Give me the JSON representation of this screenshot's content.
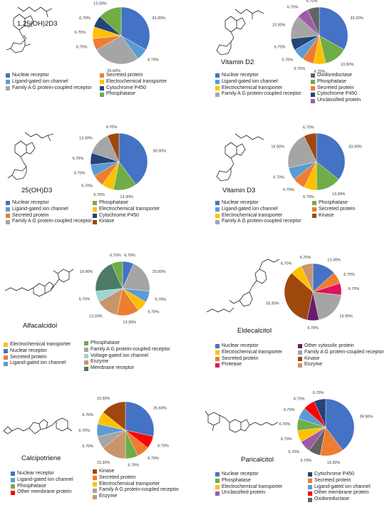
{
  "chart_data": [
    {
      "type": "pie",
      "compound": "1,25(OH)2D3",
      "slices": [
        {
          "name": "Nuclear receptor",
          "value": 33.3,
          "label": "33.30%",
          "color": "#4472c4"
        },
        {
          "name": "Ligand-gated ion channel",
          "value": 6.7,
          "label": "6.70%",
          "color": "#5b9bd5"
        },
        {
          "name": "Family A G protein-coupled receptor",
          "value": 26.6,
          "label": "26.60%",
          "color": "#a5a5a5"
        },
        {
          "name": "Secreted protein",
          "value": 6.7,
          "label": "6.70%",
          "color": "#ed7d31"
        },
        {
          "name": "Electrochemical transporter",
          "value": 6.7,
          "label": "6.70%",
          "color": "#ffc000"
        },
        {
          "name": "Cytochrome P450",
          "value": 6.7,
          "label": "6.70%",
          "color": "#264478"
        },
        {
          "name": "Phosphatase",
          "value": 13.3,
          "label": "13.30%",
          "color": "#70ad47"
        }
      ],
      "legend_col1": [
        {
          "name": "Nuclear receptor",
          "color": "#4472c4"
        },
        {
          "name": "Ligand-gated ion channel",
          "color": "#5b9bd5"
        },
        {
          "name": "Family A G protein-coupled receptor",
          "color": "#a5a5a5"
        }
      ],
      "legend_col2": [
        {
          "name": "Secreted protein",
          "color": "#ed7d31"
        },
        {
          "name": "Electrochemical transporter",
          "color": "#ffc000"
        },
        {
          "name": "Cytochrome P450",
          "color": "#264478"
        },
        {
          "name": "Phosphatase",
          "color": "#70ad47"
        }
      ]
    },
    {
      "type": "pie",
      "compound": "Vitamin D2",
      "slices": [
        {
          "name": "Nuclear receptor",
          "value": 33.2,
          "label": "33.20%",
          "color": "#4472c4"
        },
        {
          "name": "Phosphatase",
          "value": 13.3,
          "label": "13.30%",
          "color": "#70ad47"
        },
        {
          "name": "Electrochemical transporter",
          "value": 6.7,
          "label": "6.70%",
          "color": "#ffc000"
        },
        {
          "name": "Secreted protein",
          "value": 6.7,
          "label": "6.70%",
          "color": "#ed7d31"
        },
        {
          "name": "Ligand-gated ion channel",
          "value": 6.7,
          "label": "6.70%",
          "color": "#5b9bd5"
        },
        {
          "name": "Cytochrome P450",
          "value": 6.7,
          "label": "6.70%",
          "color": "#264478"
        },
        {
          "name": "Family A G protein-coupled receptor",
          "value": 13.3,
          "label": "13.30%",
          "color": "#a5a5a5"
        },
        {
          "name": "Unclassified protein",
          "value": 6.7,
          "label": "6.70%",
          "color": "#9e5ca8"
        },
        {
          "name": "Oxidoreductase",
          "value": 6.7,
          "label": "6.70%",
          "color": "#636363"
        }
      ],
      "legend_col1": [
        {
          "name": "Nuclear receptor",
          "color": "#4472c4"
        },
        {
          "name": "Ligand-gated ion channel",
          "color": "#5b9bd5"
        },
        {
          "name": "Electrochemical transporter",
          "color": "#ffc000"
        },
        {
          "name": "Family A G protein-coupled receptor",
          "color": "#a5a5a5"
        }
      ],
      "legend_col2": [
        {
          "name": "Oxidoreductase",
          "color": "#636363"
        },
        {
          "name": "Phosphatase",
          "color": "#70ad47"
        },
        {
          "name": "Secreted protein",
          "color": "#ed7d31"
        },
        {
          "name": "Cytochrome P450",
          "color": "#264478"
        },
        {
          "name": "Unclassified protein",
          "color": "#9e5ca8"
        }
      ]
    },
    {
      "type": "pie",
      "compound": "25(OH)D3",
      "slices": [
        {
          "name": "Nuclear receptor",
          "value": 39.9,
          "label": "39.90%",
          "color": "#4472c4"
        },
        {
          "name": "Phosphatase",
          "value": 13.3,
          "label": "13.30%",
          "color": "#70ad47"
        },
        {
          "name": "Electrochemical transporter",
          "value": 6.7,
          "label": "6.70%",
          "color": "#ffc000"
        },
        {
          "name": "Secreted protein",
          "value": 6.7,
          "label": "6.70%",
          "color": "#ed7d31"
        },
        {
          "name": "Ligand-gated ion channel",
          "value": 6.7,
          "label": "6.70%",
          "color": "#5b9bd5"
        },
        {
          "name": "Cytochrome P450",
          "value": 6.7,
          "label": "6.70%",
          "color": "#264478"
        },
        {
          "name": "Family A G protein-coupled receptor",
          "value": 13.3,
          "label": "13.30%",
          "color": "#a5a5a5"
        },
        {
          "name": "Kinase",
          "value": 6.7,
          "label": "6.70%",
          "color": "#9e480e"
        }
      ],
      "legend_col1": [
        {
          "name": "Nuclear receptor",
          "color": "#4472c4"
        },
        {
          "name": "Ligand-gated ion channel",
          "color": "#5b9bd5"
        },
        {
          "name": "Secreted protein",
          "color": "#ed7d31"
        },
        {
          "name": "Family A G protein-coupled receptor",
          "color": "#a5a5a5"
        }
      ],
      "legend_col2": [
        {
          "name": "Phosphatase",
          "color": "#70ad47"
        },
        {
          "name": "Electrochemical transporter",
          "color": "#ffc000"
        },
        {
          "name": "Cytochrome P450",
          "color": "#264478"
        },
        {
          "name": "Kinase",
          "color": "#9e480e"
        }
      ]
    },
    {
      "type": "pie",
      "compound": "Vitamin D3",
      "slices": [
        {
          "name": "Nuclear receptor",
          "value": 33.3,
          "label": "33.30%",
          "color": "#4472c4"
        },
        {
          "name": "Phosphatase",
          "value": 13.3,
          "label": "13.30%",
          "color": "#70ad47"
        },
        {
          "name": "Electrochemical transporter",
          "value": 6.7,
          "label": "6.70%",
          "color": "#ffc000"
        },
        {
          "name": "Secreted protein",
          "value": 6.7,
          "label": "6.70%",
          "color": "#ed7d31"
        },
        {
          "name": "Ligand-gated ion channel",
          "value": 6.7,
          "label": "6.70%",
          "color": "#5b9bd5"
        },
        {
          "name": "Family A G protein-coupled receptor",
          "value": 19.9,
          "label": "19.90%",
          "color": "#a5a5a5"
        },
        {
          "name": "Kinase",
          "value": 6.7,
          "label": "6.70%",
          "color": "#9e480e"
        }
      ],
      "legend_col1": [
        {
          "name": "Nuclear receptor",
          "color": "#4472c4"
        },
        {
          "name": "Ligand-gated ion channel",
          "color": "#5b9bd5"
        },
        {
          "name": "Electrochemical transporter",
          "color": "#ffc000"
        },
        {
          "name": "Family A G protein-coupled receptor",
          "color": "#a5a5a5"
        }
      ],
      "legend_col2": [
        {
          "name": "Phosphatase",
          "color": "#70ad47"
        },
        {
          "name": "Secreted protein",
          "color": "#ed7d31"
        },
        {
          "name": "Kinase",
          "color": "#9e480e"
        }
      ]
    },
    {
      "type": "pie",
      "compound": "Alfacalcidol",
      "slices": [
        {
          "name": "Nuclear receptor",
          "value": 6.7,
          "label": "6.70%",
          "color": "#4472c4"
        },
        {
          "name": "Family A G protein-coupled receptor",
          "value": 20.0,
          "label": "20.00%",
          "color": "#a5a5a5"
        },
        {
          "name": "Ligand-gated ion channel",
          "value": 6.7,
          "label": "6.70%",
          "color": "#5b9bd5"
        },
        {
          "name": "Electrochemical transporter",
          "value": 6.7,
          "label": "6.70%",
          "color": "#ffc000"
        },
        {
          "name": "Secreted protein",
          "value": 13.3,
          "label": "13.30%",
          "color": "#ed7d31"
        },
        {
          "name": "Enzyme",
          "value": 13.3,
          "label": "13.30%",
          "color": "#c9956a"
        },
        {
          "name": "Voltage-gated ion channel",
          "value": 6.7,
          "label": "6.70%",
          "color": "#9dd6d0"
        },
        {
          "name": "Membrane receptor",
          "value": 19.9,
          "label": "19.90%",
          "color": "#4d7a66"
        },
        {
          "name": "Phosphatase",
          "value": 6.7,
          "label": "6.70%",
          "color": "#70ad47"
        }
      ],
      "legend_col1": [
        {
          "name": "Electrochemical transporter",
          "color": "#ffc000"
        },
        {
          "name": "Nuclear receptor",
          "color": "#4472c4"
        },
        {
          "name": "Secreted protein",
          "color": "#ed7d31"
        },
        {
          "name": "Ligand-gated ion channel",
          "color": "#5b9bd5"
        }
      ],
      "legend_col2": [
        {
          "name": "Phosphatase",
          "color": "#70ad47"
        },
        {
          "name": "Family A G protein-coupled receptor",
          "color": "#a5a5a5"
        },
        {
          "name": "Voltage-gated ion channel",
          "color": "#9dd6d0"
        },
        {
          "name": "Enzyme",
          "color": "#c9956a"
        },
        {
          "name": "Membrane receptor",
          "color": "#4d7a66"
        }
      ]
    },
    {
      "type": "pie",
      "compound": "Eldecalcitol",
      "slices": [
        {
          "name": "Nuclear receptor",
          "value": 13.3,
          "label": "13.30%",
          "color": "#4472c4"
        },
        {
          "name": "Secreted protein",
          "value": 6.7,
          "label": "6.70%",
          "color": "#ed7d31"
        },
        {
          "name": "Protease",
          "value": 6.7,
          "label": "6.70%",
          "color": "#e0115f"
        },
        {
          "name": "Family A G protein-coupled receptor",
          "value": 19.9,
          "label": "19.90%",
          "color": "#a5a5a5"
        },
        {
          "name": "Other cytosolic protein",
          "value": 6.7,
          "label": "6.70%",
          "color": "#6a1b6a"
        },
        {
          "name": "Kinase",
          "value": 33.3,
          "label": "33.30%",
          "color": "#9e480e"
        },
        {
          "name": "Electrochemical transporter",
          "value": 6.7,
          "label": "6.70%",
          "color": "#ffc000"
        },
        {
          "name": "Enzyme",
          "value": 6.7,
          "label": "6.70%",
          "color": "#c9956a"
        }
      ],
      "legend_col1": [
        {
          "name": "Nuclear receptor",
          "color": "#4472c4"
        },
        {
          "name": "Electrochemical transporter",
          "color": "#ffc000"
        },
        {
          "name": "Secreted protein",
          "color": "#ed7d31"
        },
        {
          "name": "Protease",
          "color": "#e0115f"
        }
      ],
      "legend_col2": [
        {
          "name": "Other cytosolic protein",
          "color": "#6a1b6a"
        },
        {
          "name": "Family A G protein-coupled receptor",
          "color": "#a5a5a5"
        },
        {
          "name": "Kinase",
          "color": "#9e480e"
        },
        {
          "name": "Enzyme",
          "color": "#c9956a"
        }
      ]
    },
    {
      "type": "pie",
      "compound": "Calcipotriene",
      "slices": [
        {
          "name": "Nuclear receptor",
          "value": 26.6,
          "label": "26.60%",
          "color": "#4472c4"
        },
        {
          "name": "Other membrane protein",
          "value": 6.7,
          "label": "6.70%",
          "color": "#ff0000"
        },
        {
          "name": "Secreted protein",
          "value": 6.7,
          "label": "6.70%",
          "color": "#ed7d31"
        },
        {
          "name": "Phosphatase",
          "value": 6.7,
          "label": "6.70%",
          "color": "#70ad47"
        },
        {
          "name": "Enzyme",
          "value": 13.3,
          "label": "13.30%",
          "color": "#c9956a"
        },
        {
          "name": "Family A G protein-coupled receptor",
          "value": 6.7,
          "label": "6.70%",
          "color": "#a5a5a5"
        },
        {
          "name": "Ligand-gated ion channel",
          "value": 6.7,
          "label": "6.70%",
          "color": "#5b9bd5"
        },
        {
          "name": "Electrochemical transporter",
          "value": 6.7,
          "label": "6.70%",
          "color": "#ffc000"
        },
        {
          "name": "Kinase",
          "value": 13.3,
          "label": "13.30%",
          "color": "#9e480e"
        }
      ],
      "legend_col1": [
        {
          "name": "Nuclear receptor",
          "color": "#4472c4"
        },
        {
          "name": "Ligand-gated ion channel",
          "color": "#5b9bd5"
        },
        {
          "name": "Phosphatase",
          "color": "#70ad47"
        },
        {
          "name": "Other membrane protein",
          "color": "#ff0000"
        }
      ],
      "legend_col2": [
        {
          "name": "Kinase",
          "color": "#9e480e"
        },
        {
          "name": "Secreted protein",
          "color": "#ed7d31"
        },
        {
          "name": "Electrochemical transporter",
          "color": "#ffc000"
        },
        {
          "name": "Family A G protein-coupled receptor",
          "color": "#a5a5a5"
        },
        {
          "name": "Enzyme",
          "color": "#c9956a"
        }
      ]
    },
    {
      "type": "pie",
      "compound": "Paricalcitol",
      "slices": [
        {
          "name": "Nuclear receptor",
          "value": 39.9,
          "label": "39.90%",
          "color": "#4472c4"
        },
        {
          "name": "Secreted protein",
          "value": 13.3,
          "label": "13.30%",
          "color": "#ed7d31"
        },
        {
          "name": "Oxidoreductase",
          "value": 6.7,
          "label": "6.70%",
          "color": "#636363"
        },
        {
          "name": "Unclassified protein",
          "value": 6.7,
          "label": "6.70%",
          "color": "#9e5ca8"
        },
        {
          "name": "Electrochemical transporter",
          "value": 6.7,
          "label": "6.70%",
          "color": "#ffc000"
        },
        {
          "name": "Phosphatase",
          "value": 6.7,
          "label": "6.70%",
          "color": "#70ad47"
        },
        {
          "name": "Ligand-gated ion channel",
          "value": 6.7,
          "label": "6.70%",
          "color": "#5b9bd5"
        },
        {
          "name": "Other membrane protein",
          "value": 6.7,
          "label": "6.70%",
          "color": "#ff0000"
        },
        {
          "name": "Cytochrome P450",
          "value": 6.7,
          "label": "6.70%",
          "color": "#264478"
        }
      ],
      "legend_col1": [
        {
          "name": "Nuclear receptor",
          "color": "#4472c4"
        },
        {
          "name": "Phosphatase",
          "color": "#70ad47"
        },
        {
          "name": "Electrochemical transporter",
          "color": "#ffc000"
        },
        {
          "name": "Unclassified protein",
          "color": "#9e5ca8"
        }
      ],
      "legend_col2": [
        {
          "name": "Cytochrome P450",
          "color": "#264478"
        },
        {
          "name": "Secreted protein",
          "color": "#ed7d31"
        },
        {
          "name": "Ligand-gated ion channel",
          "color": "#5b9bd5"
        },
        {
          "name": "Other membrane protein",
          "color": "#ff0000"
        },
        {
          "name": "Oxidoreductase",
          "color": "#636363"
        }
      ]
    }
  ]
}
